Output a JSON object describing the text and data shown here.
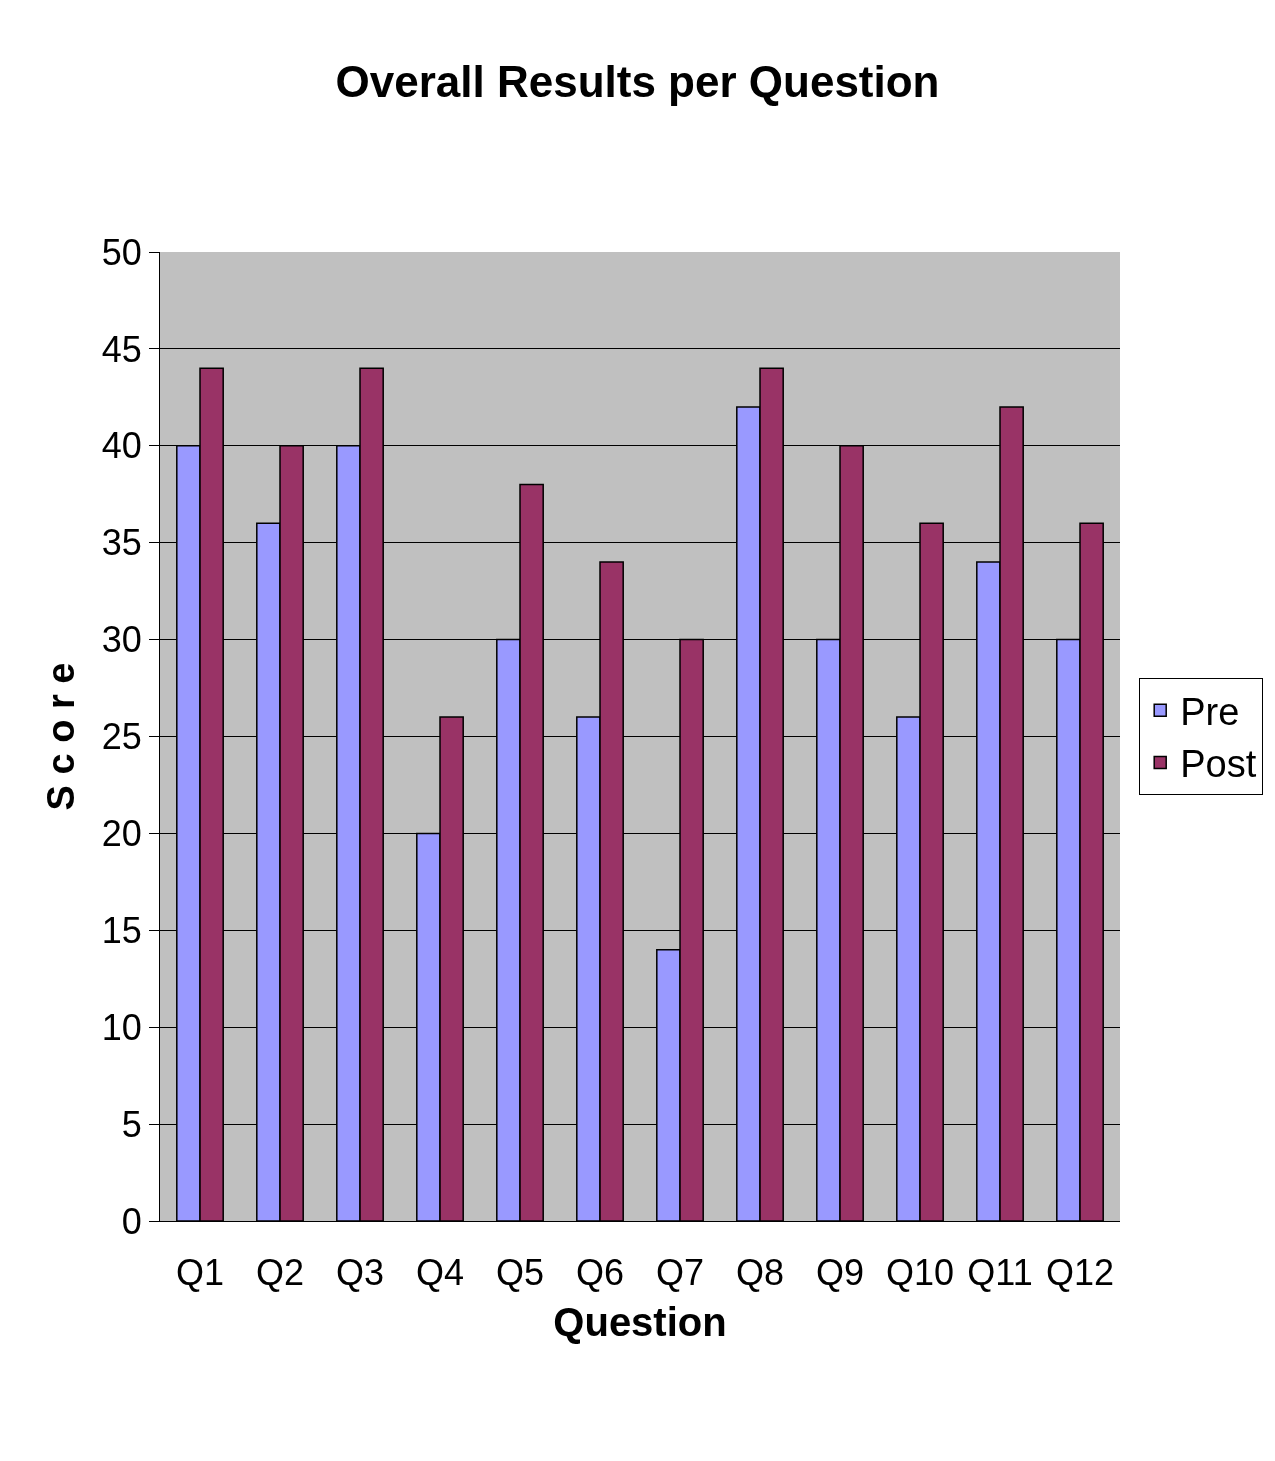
{
  "chart_data": {
    "type": "bar",
    "title": "Overall Results per Question",
    "xlabel": "Question",
    "ylabel": "S c o r e",
    "categories": [
      "Q1",
      "Q2",
      "Q3",
      "Q4",
      "Q5",
      "Q6",
      "Q7",
      "Q8",
      "Q9",
      "Q10",
      "Q11",
      "Q12"
    ],
    "series": [
      {
        "name": "Pre",
        "color": "#9999ff",
        "values": [
          40,
          36,
          40,
          20,
          30,
          26,
          14,
          42,
          30,
          26,
          34,
          30
        ]
      },
      {
        "name": "Post",
        "color": "#993366",
        "values": [
          44,
          40,
          44,
          26,
          38,
          34,
          30,
          44,
          40,
          36,
          42,
          36
        ]
      }
    ],
    "ylim": [
      0,
      50
    ],
    "yticks": [
      0,
      5,
      10,
      15,
      20,
      25,
      30,
      35,
      40,
      45,
      50
    ],
    "grid": "y",
    "legend": "right"
  }
}
